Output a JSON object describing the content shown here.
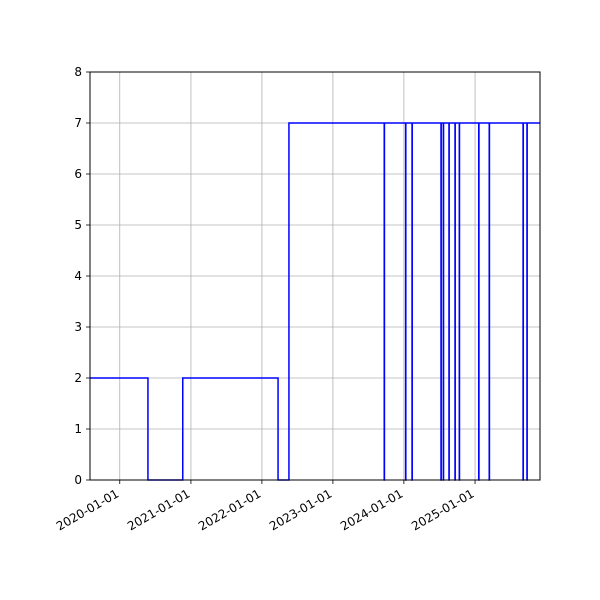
{
  "chart_data": {
    "type": "line",
    "drawstyle": "steps-post",
    "title": "",
    "xlabel": "",
    "ylabel": "",
    "xlim": [
      "2019-08-01",
      "2025-12-01"
    ],
    "ylim": [
      0,
      8
    ],
    "grid": true,
    "line_color": "#0000ff",
    "grid_color": "#b0b0b0",
    "x_ticks": [
      "2020-01-01",
      "2021-01-01",
      "2022-01-01",
      "2023-01-01",
      "2024-01-01",
      "2025-01-01"
    ],
    "y_ticks": [
      "0",
      "1",
      "2",
      "3",
      "4",
      "5",
      "6",
      "7",
      "8"
    ],
    "series": [
      {
        "x": [
          "2019-08-01",
          "2020-05-25",
          "2020-11-20",
          "2022-03-25",
          "2022-05-20",
          "2023-09-22",
          "2023-09-23",
          "2024-01-10",
          "2024-01-11",
          "2024-02-12",
          "2024-02-13",
          "2024-07-10",
          "2024-07-11",
          "2024-07-22",
          "2024-07-23",
          "2024-08-20",
          "2024-08-21",
          "2024-09-20",
          "2024-09-21",
          "2024-10-12",
          "2024-10-13",
          "2025-01-20",
          "2025-01-21",
          "2025-03-15",
          "2025-03-16",
          "2025-09-05",
          "2025-09-06",
          "2025-09-25",
          "2025-09-26",
          "2025-12-01"
        ],
        "y": [
          2,
          0,
          2,
          0,
          7,
          0,
          7,
          0,
          7,
          0,
          7,
          0,
          7,
          0,
          7,
          0,
          7,
          0,
          7,
          0,
          7,
          0,
          7,
          0,
          7,
          0,
          7,
          0,
          7,
          7
        ]
      }
    ]
  }
}
